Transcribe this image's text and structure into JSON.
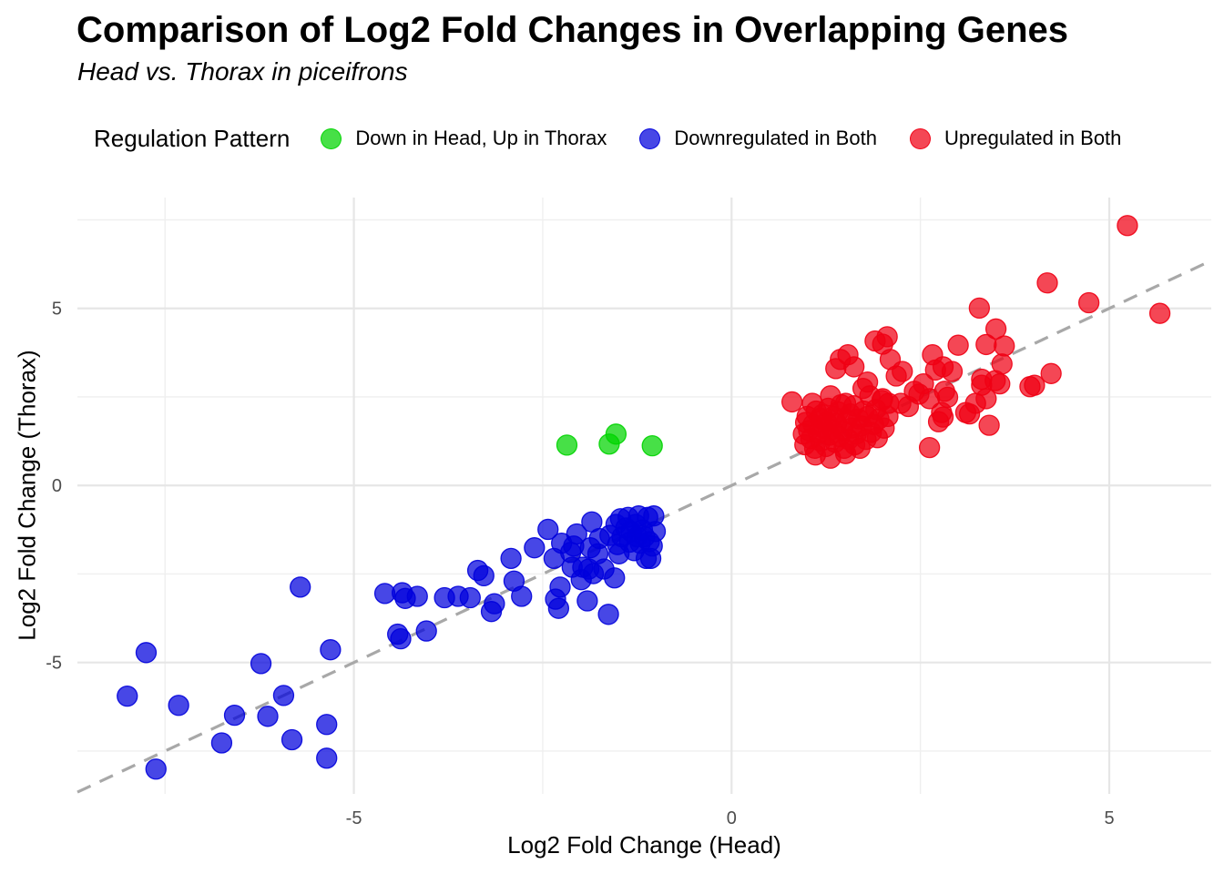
{
  "legend": {
    "title": "Regulation Pattern"
  },
  "chart_data": {
    "type": "scatter",
    "title": "Comparison of Log2 Fold Changes in Overlapping Genes",
    "subtitle": "Head vs. Thorax in piceifrons",
    "xlabel": "Log2 Fold Change (Head)",
    "ylabel": "Log2 Fold Change (Thorax)",
    "xlim": [
      -8.66,
      6.35
    ],
    "ylim": [
      -8.71,
      8.13
    ],
    "xticks": [
      -5,
      0,
      5
    ],
    "yticks": [
      -5,
      0,
      5
    ],
    "xtick_labels": [
      "-5",
      "0",
      "5"
    ],
    "ytick_labels": [
      "-5",
      "0",
      "5"
    ],
    "minor_xticks": [
      -7.5,
      -2.5,
      2.5
    ],
    "minor_yticks": [
      -7.5,
      -2.5,
      2.5,
      7.5
    ],
    "grid": true,
    "legend_position": "top",
    "colors": {
      "grid_major": "#e6e6e6",
      "grid_minor": "#efefef",
      "tick_label": "#4d4d4d",
      "reference_line": "#a8a8a8"
    },
    "reference_line": {
      "type": "identity y=x",
      "style": "dashed"
    },
    "series": [
      {
        "name": "Down in Head, Up in Thorax",
        "color": "#00d400",
        "points": [
          [
            -2.18,
            1.14
          ],
          [
            -1.62,
            1.17
          ],
          [
            -1.53,
            1.45
          ],
          [
            -1.05,
            1.12
          ]
        ]
      },
      {
        "name": "Downregulated in Both",
        "color": "#0000dc",
        "points": [
          [
            -8.0,
            -5.95
          ],
          [
            -7.75,
            -4.72
          ],
          [
            -7.62,
            -8.01
          ],
          [
            -7.32,
            -6.21
          ],
          [
            -6.75,
            -7.27
          ],
          [
            -6.58,
            -6.49
          ],
          [
            -6.23,
            -5.03
          ],
          [
            -6.14,
            -6.52
          ],
          [
            -5.93,
            -5.93
          ],
          [
            -5.82,
            -7.18
          ],
          [
            -5.71,
            -2.87
          ],
          [
            -5.36,
            -6.75
          ],
          [
            -5.36,
            -7.7
          ],
          [
            -5.31,
            -4.64
          ],
          [
            -4.59,
            -3.05
          ],
          [
            -4.42,
            -4.2
          ],
          [
            -4.38,
            -4.33
          ],
          [
            -4.36,
            -3.03
          ],
          [
            -4.32,
            -3.19
          ],
          [
            -4.16,
            -3.13
          ],
          [
            -4.04,
            -4.11
          ],
          [
            -3.8,
            -3.17
          ],
          [
            -3.62,
            -3.13
          ],
          [
            -3.46,
            -3.17
          ],
          [
            -3.36,
            -2.4
          ],
          [
            -3.28,
            -2.55
          ],
          [
            -3.18,
            -3.56
          ],
          [
            -3.14,
            -3.34
          ],
          [
            -2.92,
            -2.06
          ],
          [
            -2.88,
            -2.7
          ],
          [
            -2.78,
            -3.13
          ],
          [
            -2.61,
            -1.76
          ],
          [
            -2.43,
            -1.24
          ],
          [
            -2.35,
            -2.06
          ],
          [
            -2.33,
            -3.21
          ],
          [
            -2.29,
            -3.47
          ],
          [
            -2.27,
            -2.87
          ],
          [
            -2.25,
            -1.63
          ],
          [
            -2.13,
            -1.89
          ],
          [
            -2.11,
            -2.31
          ],
          [
            -2.09,
            -1.71
          ],
          [
            -2.05,
            -1.37
          ],
          [
            -1.99,
            -2.66
          ],
          [
            -1.97,
            -2.31
          ],
          [
            -1.91,
            -3.26
          ],
          [
            -1.89,
            -2.36
          ],
          [
            -1.87,
            -1.76
          ],
          [
            -1.85,
            -1.03
          ],
          [
            -1.83,
            -2.49
          ],
          [
            -1.77,
            -1.93
          ],
          [
            -1.75,
            -1.5
          ],
          [
            -1.69,
            -2.36
          ],
          [
            -1.63,
            -3.64
          ],
          [
            -1.61,
            -1.41
          ],
          [
            -1.55,
            -2.61
          ],
          [
            -1.53,
            -1.1
          ],
          [
            -1.51,
            -1.67
          ],
          [
            -1.49,
            -1.93
          ],
          [
            -1.47,
            -0.94
          ],
          [
            -1.45,
            -1.45
          ],
          [
            -1.4,
            -1.2
          ],
          [
            -1.37,
            -0.9
          ],
          [
            -1.35,
            -1.6
          ],
          [
            -1.33,
            -1.3
          ],
          [
            -1.29,
            -1.84
          ],
          [
            -1.27,
            -1.1
          ],
          [
            -1.25,
            -1.45
          ],
          [
            -1.23,
            -0.86
          ],
          [
            -1.21,
            -1.63
          ],
          [
            -1.18,
            -1.25
          ],
          [
            -1.15,
            -1.45
          ],
          [
            -1.13,
            -2.06
          ],
          [
            -1.11,
            -0.9
          ],
          [
            -1.09,
            -1.59
          ],
          [
            -1.07,
            -2.06
          ],
          [
            -1.05,
            -1.71
          ],
          [
            -1.03,
            -0.86
          ],
          [
            -1.01,
            -1.3
          ]
        ]
      },
      {
        "name": "Upregulated in Both",
        "color": "#f00014",
        "points": [
          [
            5.24,
            7.34
          ],
          [
            5.67,
            4.86
          ],
          [
            4.73,
            5.16
          ],
          [
            4.18,
            5.72
          ],
          [
            4.23,
            3.16
          ],
          [
            4.01,
            2.83
          ],
          [
            3.95,
            2.79
          ],
          [
            3.61,
            3.94
          ],
          [
            3.58,
            3.43
          ],
          [
            3.55,
            2.87
          ],
          [
            3.5,
            4.42
          ],
          [
            3.49,
            2.96
          ],
          [
            3.41,
            1.7
          ],
          [
            3.37,
            3.98
          ],
          [
            3.37,
            2.45
          ],
          [
            3.31,
            3.0
          ],
          [
            3.31,
            2.83
          ],
          [
            3.28,
            5.01
          ],
          [
            3.23,
            2.32
          ],
          [
            3.15,
            2.02
          ],
          [
            3.1,
            2.06
          ],
          [
            3.0,
            3.96
          ],
          [
            2.92,
            3.22
          ],
          [
            2.86,
            2.49
          ],
          [
            2.82,
            2.66
          ],
          [
            2.8,
            3.35
          ],
          [
            2.8,
            1.93
          ],
          [
            2.78,
            2.06
          ],
          [
            2.74,
            1.8
          ],
          [
            2.7,
            3.26
          ],
          [
            2.66,
            3.69
          ],
          [
            2.62,
            2.45
          ],
          [
            2.62,
            1.07
          ],
          [
            2.54,
            2.87
          ],
          [
            2.48,
            2.58
          ],
          [
            2.42,
            2.66
          ],
          [
            2.34,
            2.23
          ],
          [
            2.26,
            3.22
          ],
          [
            2.24,
            2.32
          ],
          [
            2.18,
            3.09
          ],
          [
            2.1,
            3.56
          ],
          [
            2.08,
            2.32
          ],
          [
            2.06,
            4.2
          ],
          [
            2.0,
            3.99
          ],
          [
            2.0,
            2.45
          ],
          [
            1.9,
            4.08
          ],
          [
            1.8,
            2.92
          ],
          [
            1.74,
            2.74
          ],
          [
            1.62,
            3.35
          ],
          [
            1.54,
            3.69
          ],
          [
            1.44,
            3.56
          ],
          [
            1.38,
            3.3
          ],
          [
            0.8,
            2.36
          ],
          [
            0.95,
            1.45
          ],
          [
            0.97,
            1.15
          ],
          [
            0.98,
            1.78
          ],
          [
            1.0,
            1.95
          ],
          [
            1.02,
            1.55
          ],
          [
            1.05,
            1.32
          ],
          [
            1.07,
            2.32
          ],
          [
            1.08,
            1.72
          ],
          [
            1.1,
            1.05
          ],
          [
            1.11,
            0.86
          ],
          [
            1.12,
            2.1
          ],
          [
            1.15,
            1.48
          ],
          [
            1.17,
            1.9
          ],
          [
            1.18,
            1.25
          ],
          [
            1.2,
            2.0
          ],
          [
            1.22,
            1.62
          ],
          [
            1.25,
            1.1
          ],
          [
            1.26,
            1.78
          ],
          [
            1.28,
            2.18
          ],
          [
            1.3,
            1.42
          ],
          [
            1.31,
            0.77
          ],
          [
            1.31,
            2.53
          ],
          [
            1.33,
            1.58
          ],
          [
            1.35,
            1.95
          ],
          [
            1.37,
            1.22
          ],
          [
            1.39,
            1.75
          ],
          [
            1.41,
            2.08
          ],
          [
            1.43,
            1.38
          ],
          [
            1.45,
            2.28
          ],
          [
            1.47,
            1.55
          ],
          [
            1.49,
            1.05
          ],
          [
            1.51,
            0.9
          ],
          [
            1.51,
            2.32
          ],
          [
            1.53,
            1.85
          ],
          [
            1.55,
            1.3
          ],
          [
            1.57,
            2.02
          ],
          [
            1.59,
            1.62
          ],
          [
            1.62,
            2.25
          ],
          [
            1.63,
            1.15
          ],
          [
            1.65,
            1.45
          ],
          [
            1.68,
            1.88
          ],
          [
            1.7,
            1.05
          ],
          [
            1.72,
            1.68
          ],
          [
            1.75,
            2.1
          ],
          [
            1.78,
            1.3
          ],
          [
            1.8,
            1.95
          ],
          [
            1.83,
            2.53
          ],
          [
            1.85,
            1.5
          ],
          [
            1.88,
            1.72
          ],
          [
            1.91,
            2.15
          ],
          [
            1.93,
            1.35
          ],
          [
            1.95,
            1.88
          ],
          [
            1.99,
            2.4
          ],
          [
            2.02,
            1.62
          ],
          [
            2.07,
            1.95
          ]
        ]
      }
    ]
  }
}
